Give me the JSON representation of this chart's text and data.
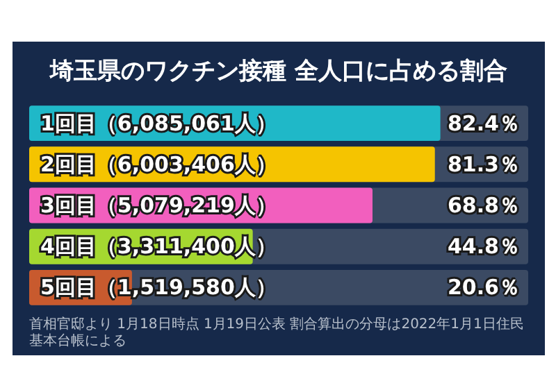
{
  "chart_data": {
    "type": "bar",
    "orientation": "horizontal",
    "title": "埼玉県のワクチン接種 全人口に占める割合",
    "categories": [
      "1回目（6,085,061人）",
      "2回目（6,003,406人）",
      "3回目（5,079,219人）",
      "4回目（3,311,400人）",
      "5回目（1,519,580人）"
    ],
    "values": [
      82.4,
      81.3,
      68.8,
      44.8,
      20.6
    ],
    "colors": [
      "#1fb8c8",
      "#f5c400",
      "#f25fbe",
      "#a5d830",
      "#c85a2e"
    ],
    "value_labels": [
      "82.4％",
      "81.3％",
      "68.8％",
      "44.8％",
      "20.6％"
    ],
    "xlim": [
      0,
      100
    ],
    "annotations": [
      "首相官邸より 1月18日時点 1月19日公表 割合算出の分母は2022年1月1日住民基本台帳による"
    ]
  }
}
